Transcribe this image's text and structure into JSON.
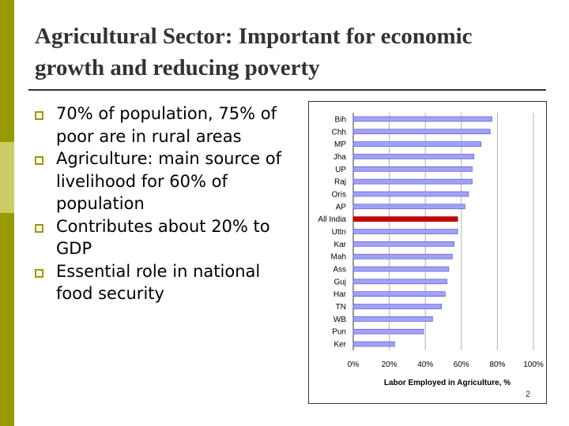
{
  "slide": {
    "title": "Agricultural Sector: Important for economic growth and reducing poverty",
    "bullets": [
      "70% of population, 75% of poor are in rural areas",
      "Agriculture: main source of livelihood for 60% of population",
      "Contributes about 20% to GDP",
      "Essential role in national food security"
    ],
    "page_number": "2"
  },
  "colors": {
    "accent": "#999900",
    "accent_light": "#cccc66",
    "bar_fill": "#a0a0ff",
    "bar_highlight": "#cc0000"
  },
  "chart_data": {
    "type": "bar",
    "orientation": "horizontal",
    "title": "",
    "xlabel": "Labor Employed in Agriculture, %",
    "ylabel": "",
    "xlim": [
      0,
      100
    ],
    "xticks": [
      "0%",
      "20%",
      "40%",
      "60%",
      "80%",
      "100%"
    ],
    "grid": true,
    "highlight": "All India",
    "categories": [
      "Bih",
      "Chh",
      "MP",
      "Jha",
      "UP",
      "Raj",
      "Oris",
      "AP",
      "All India",
      "Uttn",
      "Kar",
      "Mah",
      "Ass",
      "Guj",
      "Har",
      "TN",
      "WB",
      "Pun",
      "Ker"
    ],
    "values": [
      77,
      76,
      71,
      67,
      66,
      66,
      64,
      62,
      58,
      58,
      56,
      55,
      53,
      52,
      51,
      49,
      44,
      39,
      23
    ]
  }
}
